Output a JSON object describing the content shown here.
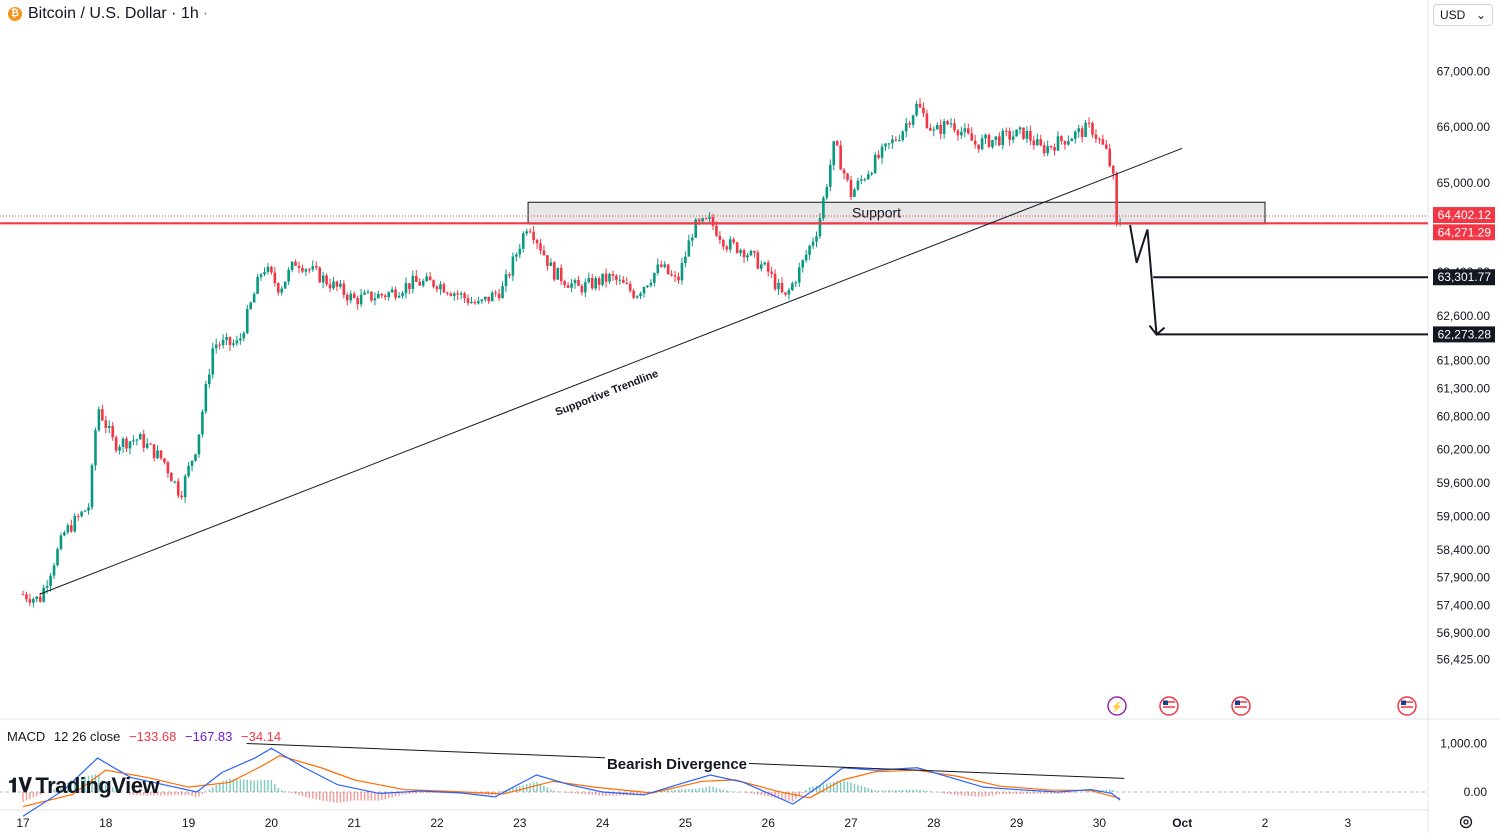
{
  "header": {
    "symbol_title": "Bitcoin / U.S. Dollar · 1h",
    "currency_label": "USD"
  },
  "icons": [
    "bitcoin-icon",
    "chevron-down-icon",
    "lightning-event-icon",
    "us-flag-event-icon",
    "settings-icon"
  ],
  "colors": {
    "up": "#089981",
    "down": "#f23645",
    "support_zone": "#d4d4d4",
    "current_price_line": "#f23645",
    "macd_line": "#2962ff",
    "signal_line": "#ff6d00"
  },
  "chart_data": {
    "type": "candlestick",
    "title": "Bitcoin / U.S. Dollar · 1h",
    "y_axis": {
      "range": [
        56250,
        67450
      ],
      "ticks": [
        "67,000.00",
        "66,000.00",
        "65,000.00",
        "62,600.00",
        "61,800.00",
        "61,300.00",
        "60,800.00",
        "60,200.00",
        "59,600.00",
        "59,000.00",
        "58,400.00",
        "57,900.00",
        "57,400.00",
        "56,900.00",
        "56,425.00"
      ],
      "hidden_tick": "63,400.00"
    },
    "x_axis": {
      "ticks": [
        "17",
        "18",
        "19",
        "20",
        "21",
        "22",
        "23",
        "24",
        "25",
        "26",
        "27",
        "28",
        "29",
        "30",
        "Oct",
        "2",
        "3"
      ]
    },
    "price_path": [
      {
        "day": 17.0,
        "price": 57600
      },
      {
        "day": 17.2,
        "price": 57500
      },
      {
        "day": 17.5,
        "price": 58700
      },
      {
        "day": 17.8,
        "price": 59200
      },
      {
        "day": 17.9,
        "price": 61000
      },
      {
        "day": 18.1,
        "price": 60300
      },
      {
        "day": 18.4,
        "price": 60400
      },
      {
        "day": 18.7,
        "price": 60000
      },
      {
        "day": 18.9,
        "price": 59400
      },
      {
        "day": 19.1,
        "price": 60300
      },
      {
        "day": 19.3,
        "price": 62100
      },
      {
        "day": 19.6,
        "price": 62100
      },
      {
        "day": 19.9,
        "price": 63500
      },
      {
        "day": 20.1,
        "price": 63100
      },
      {
        "day": 20.3,
        "price": 63600
      },
      {
        "day": 20.7,
        "price": 63200
      },
      {
        "day": 21.0,
        "price": 62900
      },
      {
        "day": 21.4,
        "price": 63000
      },
      {
        "day": 21.7,
        "price": 63200
      },
      {
        "day": 22.0,
        "price": 63200
      },
      {
        "day": 22.5,
        "price": 62800
      },
      {
        "day": 22.8,
        "price": 63100
      },
      {
        "day": 23.1,
        "price": 64300
      },
      {
        "day": 23.4,
        "price": 63400
      },
      {
        "day": 23.7,
        "price": 63100
      },
      {
        "day": 24.1,
        "price": 63300
      },
      {
        "day": 24.4,
        "price": 63000
      },
      {
        "day": 24.7,
        "price": 63500
      },
      {
        "day": 24.9,
        "price": 63200
      },
      {
        "day": 25.1,
        "price": 64200
      },
      {
        "day": 25.3,
        "price": 64300
      },
      {
        "day": 25.5,
        "price": 63900
      },
      {
        "day": 25.7,
        "price": 63800
      },
      {
        "day": 26.0,
        "price": 63400
      },
      {
        "day": 26.2,
        "price": 62900
      },
      {
        "day": 26.4,
        "price": 63500
      },
      {
        "day": 26.6,
        "price": 64200
      },
      {
        "day": 26.8,
        "price": 65700
      },
      {
        "day": 27.0,
        "price": 64800
      },
      {
        "day": 27.3,
        "price": 65400
      },
      {
        "day": 27.6,
        "price": 65900
      },
      {
        "day": 27.8,
        "price": 66400
      },
      {
        "day": 28.0,
        "price": 65900
      },
      {
        "day": 28.2,
        "price": 66100
      },
      {
        "day": 28.5,
        "price": 65700
      },
      {
        "day": 28.8,
        "price": 65800
      },
      {
        "day": 29.1,
        "price": 65900
      },
      {
        "day": 29.3,
        "price": 65600
      },
      {
        "day": 29.6,
        "price": 65800
      },
      {
        "day": 29.9,
        "price": 66000
      },
      {
        "day": 30.1,
        "price": 65500
      },
      {
        "day": 30.22,
        "price": 64700
      },
      {
        "day": 30.25,
        "price": 64271.29
      }
    ],
    "price_labels": [
      {
        "text": "64,402.12",
        "price": 64402.12,
        "style": "red"
      },
      {
        "text": "64,271.29",
        "price": 64271.29,
        "style": "red"
      },
      {
        "text": "63,301.77",
        "price": 63301.77,
        "style": "black"
      },
      {
        "text": "62,273.28",
        "price": 62273.28,
        "style": "black"
      }
    ],
    "annotations": {
      "support_label": "Support",
      "support_zone": {
        "day_from": 23.1,
        "day_to": 32.0,
        "price_top": 64650,
        "price_bottom": 64260
      },
      "trendline_label": "Supportive Trendline",
      "trendline": {
        "day_from": 17.2,
        "price_from": 57600,
        "day_to": 31.0,
        "price_to": 65620
      },
      "projection_path": [
        {
          "day": 30.37,
          "price": 64240
        },
        {
          "day": 30.45,
          "price": 63560
        },
        {
          "day": 30.58,
          "price": 64160
        },
        {
          "day": 30.69,
          "price": 62270
        }
      ],
      "target_levels": [
        {
          "price": 63301.77,
          "day_from": 30.65
        },
        {
          "price": 62273.28,
          "day_from": 30.69
        }
      ]
    },
    "macd": {
      "label": "MACD",
      "params": "12 26 close",
      "values": [
        "−133.68",
        "−167.83",
        "−34.14"
      ],
      "y_ticks": [
        "1,000.00",
        "0.00"
      ],
      "divergence_label": "Bearish Divergence",
      "macd_path": [
        {
          "day": 17.0,
          "v": -500
        },
        {
          "day": 17.5,
          "v": 50
        },
        {
          "day": 17.9,
          "v": 700
        },
        {
          "day": 18.3,
          "v": 300
        },
        {
          "day": 18.7,
          "v": 150
        },
        {
          "day": 19.1,
          "v": 0
        },
        {
          "day": 19.4,
          "v": 400
        },
        {
          "day": 19.8,
          "v": 700
        },
        {
          "day": 20.0,
          "v": 900
        },
        {
          "day": 20.4,
          "v": 500
        },
        {
          "day": 20.8,
          "v": 150
        },
        {
          "day": 21.3,
          "v": -30
        },
        {
          "day": 21.8,
          "v": 20
        },
        {
          "day": 22.3,
          "v": -20
        },
        {
          "day": 22.7,
          "v": -100
        },
        {
          "day": 23.2,
          "v": 350
        },
        {
          "day": 23.6,
          "v": 150
        },
        {
          "day": 24.0,
          "v": 0
        },
        {
          "day": 24.5,
          "v": -60
        },
        {
          "day": 25.0,
          "v": 200
        },
        {
          "day": 25.3,
          "v": 350
        },
        {
          "day": 25.7,
          "v": 200
        },
        {
          "day": 26.1,
          "v": -100
        },
        {
          "day": 26.3,
          "v": -250
        },
        {
          "day": 26.6,
          "v": 100
        },
        {
          "day": 26.9,
          "v": 500
        },
        {
          "day": 27.3,
          "v": 450
        },
        {
          "day": 27.8,
          "v": 500
        },
        {
          "day": 28.2,
          "v": 300
        },
        {
          "day": 28.6,
          "v": 100
        },
        {
          "day": 29.0,
          "v": 50
        },
        {
          "day": 29.5,
          "v": 0
        },
        {
          "day": 29.9,
          "v": 50
        },
        {
          "day": 30.15,
          "v": -30
        },
        {
          "day": 30.25,
          "v": -167
        }
      ],
      "signal_path": [
        {
          "day": 17.0,
          "v": -300
        },
        {
          "day": 17.6,
          "v": -50
        },
        {
          "day": 18.0,
          "v": 450
        },
        {
          "day": 18.5,
          "v": 300
        },
        {
          "day": 19.0,
          "v": 100
        },
        {
          "day": 19.5,
          "v": 200
        },
        {
          "day": 19.9,
          "v": 550
        },
        {
          "day": 20.1,
          "v": 750
        },
        {
          "day": 20.6,
          "v": 500
        },
        {
          "day": 21.0,
          "v": 250
        },
        {
          "day": 21.6,
          "v": 50
        },
        {
          "day": 22.2,
          "v": 10
        },
        {
          "day": 22.8,
          "v": -40
        },
        {
          "day": 23.4,
          "v": 220
        },
        {
          "day": 23.9,
          "v": 100
        },
        {
          "day": 24.6,
          "v": -20
        },
        {
          "day": 25.2,
          "v": 220
        },
        {
          "day": 25.6,
          "v": 250
        },
        {
          "day": 26.1,
          "v": 20
        },
        {
          "day": 26.5,
          "v": -120
        },
        {
          "day": 26.9,
          "v": 250
        },
        {
          "day": 27.3,
          "v": 420
        },
        {
          "day": 27.8,
          "v": 450
        },
        {
          "day": 28.3,
          "v": 320
        },
        {
          "day": 28.8,
          "v": 120
        },
        {
          "day": 29.4,
          "v": 40
        },
        {
          "day": 29.9,
          "v": 30
        },
        {
          "day": 30.25,
          "v": -133
        }
      ],
      "divergence_line": {
        "day_from": 19.7,
        "v_from": 1000,
        "day_to": 30.3,
        "v_to": 280
      }
    }
  }
}
